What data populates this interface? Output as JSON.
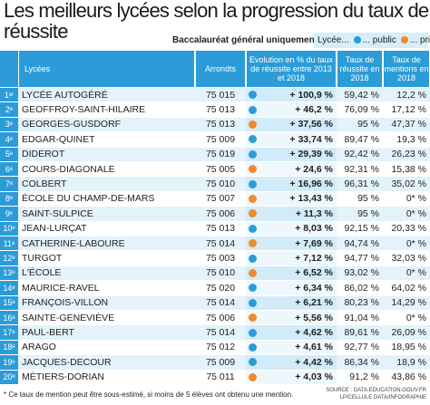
{
  "header": {
    "title": "Les meilleurs lycées selon la progression du taux de réussite",
    "subtitle": "Baccalauréat général uniquement",
    "legend": {
      "lead": "Lycée...",
      "items": [
        {
          "key": "public",
          "label": "... public",
          "color": "#2b9cd8"
        },
        {
          "key": "privé",
          "label": "... privé",
          "color": "#f08a2c"
        }
      ]
    }
  },
  "table": {
    "columns": [
      "Lycées",
      "Arrondts",
      "Evolution en % du taux de réussite entre 2013 et 2018",
      "Taux de réussite en 2018",
      "Taux de mentions en 2018"
    ],
    "rows": [
      {
        "rank": "1",
        "suffix": "er",
        "name": "LYCÉE AUTOGÉRÉ",
        "arr": "75 015",
        "sector": "public",
        "evo": "+ 100,9 %",
        "reussite": "59,42 %",
        "mentions": "12,2 %"
      },
      {
        "rank": "2",
        "suffix": "e",
        "name": "GEOFFROY-SAINT-HILAIRE",
        "arr": "75 013",
        "sector": "public",
        "evo": "+ 46,2 %",
        "reussite": "76,09 %",
        "mentions": "17,12 %"
      },
      {
        "rank": "3",
        "suffix": "e",
        "name": "GEORGES-GUSDORF",
        "arr": "75 013",
        "sector": "privé",
        "evo": "+ 37,56 %",
        "reussite": "95 %",
        "mentions": "47,37 %"
      },
      {
        "rank": "4",
        "suffix": "e",
        "name": "EDGAR-QUINET",
        "arr": "75 009",
        "sector": "public",
        "evo": "+ 33,74 %",
        "reussite": "89,47 %",
        "mentions": "19,3 %"
      },
      {
        "rank": "5",
        "suffix": "e",
        "name": "DIDEROT",
        "arr": "75 019",
        "sector": "public",
        "evo": "+ 29,39 %",
        "reussite": "92,42 %",
        "mentions": "26,23 %"
      },
      {
        "rank": "6",
        "suffix": "e",
        "name": "COURS-DIAGONALE",
        "arr": "75 005",
        "sector": "privé",
        "evo": "+ 24,6 %",
        "reussite": "92,31 %",
        "mentions": "15,38 %"
      },
      {
        "rank": "7",
        "suffix": "e",
        "name": "COLBERT",
        "arr": "75 010",
        "sector": "public",
        "evo": "+ 16,96 %",
        "reussite": "96,31 %",
        "mentions": "35,02 %"
      },
      {
        "rank": "8",
        "suffix": "e",
        "name": "ÉCOLE DU CHAMP-DE-MARS",
        "arr": "75 007",
        "sector": "privé",
        "evo": "+ 13,43 %",
        "reussite": "95 %",
        "mentions": "0* %"
      },
      {
        "rank": "9",
        "suffix": "e",
        "name": "SAINT-SULPICE",
        "arr": "75 006",
        "sector": "privé",
        "evo": "+ 11,3 %",
        "reussite": "95 %",
        "mentions": "0* %"
      },
      {
        "rank": "10",
        "suffix": "e",
        "name": "JEAN-LURÇAT",
        "arr": "75 013",
        "sector": "public",
        "evo": "+ 8,03 %",
        "reussite": "92,15 %",
        "mentions": "20,33 %"
      },
      {
        "rank": "11",
        "suffix": "e",
        "name": "CATHERINE-LABOURE",
        "arr": "75 014",
        "sector": "privé",
        "evo": "+ 7,69 %",
        "reussite": "94,74 %",
        "mentions": "0* %"
      },
      {
        "rank": "12",
        "suffix": "e",
        "name": "TURGOT",
        "arr": "75 003",
        "sector": "public",
        "evo": "+ 7,12 %",
        "reussite": "94,77 %",
        "mentions": "32,03 %"
      },
      {
        "rank": "13",
        "suffix": "e",
        "name": "L'ÉCOLE",
        "arr": "75 010",
        "sector": "privé",
        "evo": "+ 6,52 %",
        "reussite": "93,02 %",
        "mentions": "0* %"
      },
      {
        "rank": "14",
        "suffix": "e",
        "name": "MAURICE-RAVEL",
        "arr": "75 020",
        "sector": "public",
        "evo": "+ 6,34 %",
        "reussite": "86,02 %",
        "mentions": "64,02 %"
      },
      {
        "rank": "15",
        "suffix": "e",
        "name": "FRANÇOIS-VILLON",
        "arr": "75 014",
        "sector": "public",
        "evo": "+ 6,21 %",
        "reussite": "80,23 %",
        "mentions": "14,29 %"
      },
      {
        "rank": "16",
        "suffix": "e",
        "name": "SAINTE-GENEVIÈVE",
        "arr": "75 006",
        "sector": "privé",
        "evo": "+ 5,56 %",
        "reussite": "91,04 %",
        "mentions": "0* %"
      },
      {
        "rank": "17",
        "suffix": "e",
        "name": "PAUL-BERT",
        "arr": "75 014",
        "sector": "public",
        "evo": "+ 4,62 %",
        "reussite": "89,61 %",
        "mentions": "26,09 %"
      },
      {
        "rank": "18",
        "suffix": "e",
        "name": "ARAGO",
        "arr": "75 012",
        "sector": "public",
        "evo": "+ 4,61 %",
        "reussite": "92,77 %",
        "mentions": "18,95 %"
      },
      {
        "rank": "19",
        "suffix": "e",
        "name": "JACQUES-DECOUR",
        "arr": "75 009",
        "sector": "public",
        "evo": "+ 4,42 %",
        "reussite": "86,34 %",
        "mentions": "18,9 %"
      },
      {
        "rank": "20",
        "suffix": "e",
        "name": "MÉTIERS-DORIAN",
        "arr": "75 011",
        "sector": "privé",
        "evo": "+ 4,03 %",
        "reussite": "91,2 %",
        "mentions": "43,86 %"
      }
    ]
  },
  "footnote": "* Ce taux de mention peut être sous-estimé, si moins de 5 élèves ont obtenu une mention.",
  "source": [
    "SOURCE : DATA.EDUCATION.GOUV.FR",
    "LP/CELLULE DATA/INFOGRAPHIE"
  ]
}
